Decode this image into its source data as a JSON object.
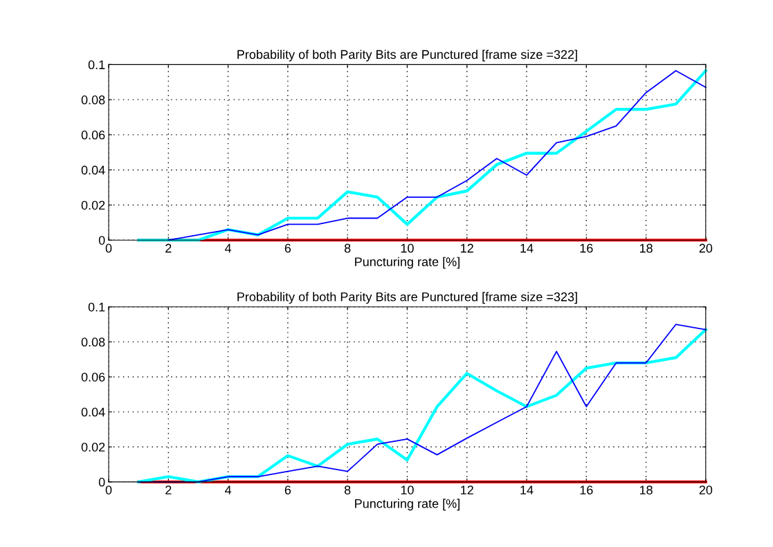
{
  "chart_data": [
    {
      "type": "line",
      "title": "Probability of both Parity Bits are Punctured [frame size =322]",
      "xlabel": "Puncturing rate [%]",
      "x": [
        1,
        2,
        3,
        4,
        5,
        6,
        7,
        8,
        9,
        10,
        11,
        12,
        13,
        14,
        15,
        16,
        17,
        18,
        19,
        20
      ],
      "xlim": [
        0,
        20
      ],
      "xticks": [
        0,
        2,
        4,
        6,
        8,
        10,
        12,
        14,
        16,
        18,
        20
      ],
      "ylim": [
        0,
        0.1
      ],
      "yticks": [
        0,
        0.02,
        0.04,
        0.06,
        0.08,
        0.1
      ],
      "grid": true,
      "line_style": "solid",
      "marker": "none",
      "series": [
        {
          "color": "#ff0000",
          "values": [
            0,
            0,
            0,
            0,
            0,
            0,
            0,
            0,
            0,
            0,
            0,
            0,
            0,
            0,
            0,
            0,
            0,
            0,
            0,
            0
          ]
        },
        {
          "color": "#00ffff",
          "values": [
            0,
            0,
            0,
            0.006,
            0.003,
            0.0125,
            0.0125,
            0.0275,
            0.0245,
            0.009,
            0.0245,
            0.028,
            0.043,
            0.0495,
            0.0495,
            0.062,
            0.0745,
            0.0745,
            0.0775,
            0.0965
          ]
        },
        {
          "color": "#0000ff",
          "values": [
            null,
            0,
            0.003,
            0.006,
            0.003,
            0.009,
            0.009,
            0.0125,
            0.0125,
            0.0245,
            0.0245,
            0.034,
            0.0465,
            0.037,
            0.0555,
            0.059,
            0.065,
            0.084,
            0.0965,
            0.087
          ]
        }
      ]
    },
    {
      "type": "line",
      "title": "Probability of both Parity Bits are Punctured [frame size =323]",
      "xlabel": "Puncturing rate [%]",
      "x": [
        1,
        2,
        3,
        4,
        5,
        6,
        7,
        8,
        9,
        10,
        11,
        12,
        13,
        14,
        15,
        16,
        17,
        18,
        19,
        20
      ],
      "xlim": [
        0,
        20
      ],
      "xticks": [
        0,
        2,
        4,
        6,
        8,
        10,
        12,
        14,
        16,
        18,
        20
      ],
      "ylim": [
        0,
        0.1
      ],
      "yticks": [
        0,
        0.02,
        0.04,
        0.06,
        0.08,
        0.1
      ],
      "grid": true,
      "line_style": "solid",
      "marker": "none",
      "series": [
        {
          "color": "#ff0000",
          "values": [
            0,
            0,
            0,
            0,
            0,
            0,
            0,
            0,
            0,
            0,
            0,
            0,
            0,
            0,
            0,
            0,
            0,
            0,
            0,
            0
          ]
        },
        {
          "color": "#00ffff",
          "values": [
            0,
            0.003,
            0,
            0.003,
            0.003,
            0.015,
            0.009,
            0.0215,
            0.0245,
            0.0125,
            0.043,
            0.062,
            0.052,
            0.043,
            0.0495,
            0.065,
            0.068,
            0.068,
            0.071,
            0.087
          ]
        },
        {
          "color": "#0000ff",
          "values": [
            0,
            0,
            0,
            0.003,
            0.003,
            0.006,
            0.009,
            0.006,
            0.0215,
            0.0245,
            0.0155,
            0.025,
            0.034,
            0.043,
            0.0745,
            0.043,
            0.068,
            0.068,
            0.09,
            0.087
          ]
        }
      ]
    }
  ]
}
